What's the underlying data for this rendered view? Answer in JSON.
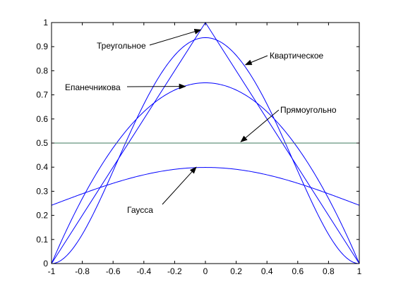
{
  "chart_data": {
    "type": "line",
    "title": "",
    "xlabel": "",
    "ylabel": "",
    "xlim": [
      -1,
      1
    ],
    "ylim": [
      0,
      1
    ],
    "x_ticks": [
      "-1",
      "-0.8",
      "-0.6",
      "-0.4",
      "-0.2",
      "0",
      "0.2",
      "0.4",
      "0.6",
      "0.8",
      "1"
    ],
    "y_ticks": [
      "0",
      "0.1",
      "0.2",
      "0.3",
      "0.4",
      "0.5",
      "0.6",
      "0.7",
      "0.8",
      "0.9",
      "1"
    ],
    "grid": false,
    "line_color": "#0000ff",
    "uniform_line_color": "#3c7a5c",
    "series": [
      {
        "id": "triangular",
        "x": [
          -1,
          0,
          1
        ],
        "y": [
          0,
          1,
          0
        ]
      },
      {
        "id": "quartic",
        "x": [
          -1,
          -0.9,
          -0.8,
          -0.7,
          -0.6,
          -0.5,
          -0.4,
          -0.3,
          -0.2,
          -0.1,
          0,
          0.1,
          0.2,
          0.3,
          0.4,
          0.5,
          0.6,
          0.7,
          0.8,
          0.9,
          1
        ],
        "y": [
          0,
          0.034,
          0.121,
          0.242,
          0.384,
          0.527,
          0.661,
          0.776,
          0.864,
          0.919,
          0.9375,
          0.919,
          0.864,
          0.776,
          0.661,
          0.527,
          0.384,
          0.242,
          0.121,
          0.034,
          0
        ]
      },
      {
        "id": "epanechnikov",
        "x": [
          -1,
          -0.9,
          -0.8,
          -0.7,
          -0.6,
          -0.5,
          -0.4,
          -0.3,
          -0.2,
          -0.1,
          0,
          0.1,
          0.2,
          0.3,
          0.4,
          0.5,
          0.6,
          0.7,
          0.8,
          0.9,
          1
        ],
        "y": [
          0,
          0.1425,
          0.27,
          0.3825,
          0.48,
          0.5625,
          0.63,
          0.6825,
          0.72,
          0.7425,
          0.75,
          0.7425,
          0.72,
          0.6825,
          0.63,
          0.5625,
          0.48,
          0.3825,
          0.27,
          0.1425,
          0
        ]
      },
      {
        "id": "uniform",
        "x": [
          -1,
          1
        ],
        "y": [
          0.5,
          0.5
        ]
      },
      {
        "id": "gaussian",
        "x": [
          -1,
          -0.9,
          -0.8,
          -0.7,
          -0.6,
          -0.5,
          -0.4,
          -0.3,
          -0.2,
          -0.1,
          0,
          0.1,
          0.2,
          0.3,
          0.4,
          0.5,
          0.6,
          0.7,
          0.8,
          0.9,
          1
        ],
        "y": [
          0.242,
          0.266,
          0.29,
          0.312,
          0.333,
          0.352,
          0.368,
          0.381,
          0.391,
          0.397,
          0.399,
          0.397,
          0.391,
          0.381,
          0.368,
          0.352,
          0.333,
          0.312,
          0.29,
          0.266,
          0.242
        ]
      }
    ],
    "annotations": [
      {
        "id": "triangular",
        "text": "Треугольное",
        "target": [
          -0.03,
          0.97
        ]
      },
      {
        "id": "quartic",
        "text": "Квартическое",
        "target": [
          0.26,
          0.825
        ]
      },
      {
        "id": "epanechnikov",
        "text": "Епанечникова",
        "target": [
          -0.13,
          0.735
        ]
      },
      {
        "id": "uniform",
        "text": "Прямоугольно",
        "target": [
          0.23,
          0.505
        ]
      },
      {
        "id": "gaussian",
        "text": "Гаусса",
        "target": [
          -0.06,
          0.4
        ]
      }
    ]
  }
}
